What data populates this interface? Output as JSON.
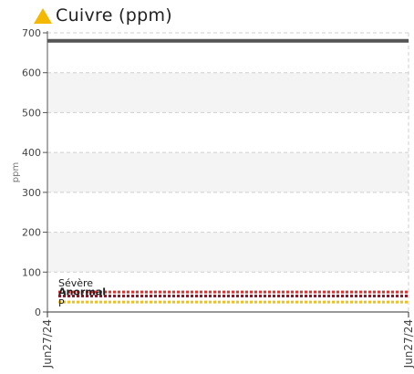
{
  "chart_data": {
    "type": "line",
    "title": "Cuivre (ppm)",
    "ylabel": "ppm",
    "xlabel": "",
    "ylim": [
      0,
      700
    ],
    "yticks": [
      0,
      100,
      200,
      300,
      400,
      500,
      600,
      700
    ],
    "x_ticks": [
      "Jun27/24",
      "Jun27/24"
    ],
    "grid": true,
    "series": [
      {
        "values": [
          680,
          680
        ],
        "color": "#555555"
      }
    ],
    "thresholds": [
      {
        "label": "Sévère",
        "value": 50,
        "color": "#e03030"
      },
      {
        "label": "Anormal",
        "value": 40,
        "color": "#8a1a2a"
      },
      {
        "label": "P",
        "value": 25,
        "color": "#f0c020"
      }
    ]
  },
  "status_icon": {
    "name": "warning-triangle-icon",
    "color": "#f5b800"
  }
}
